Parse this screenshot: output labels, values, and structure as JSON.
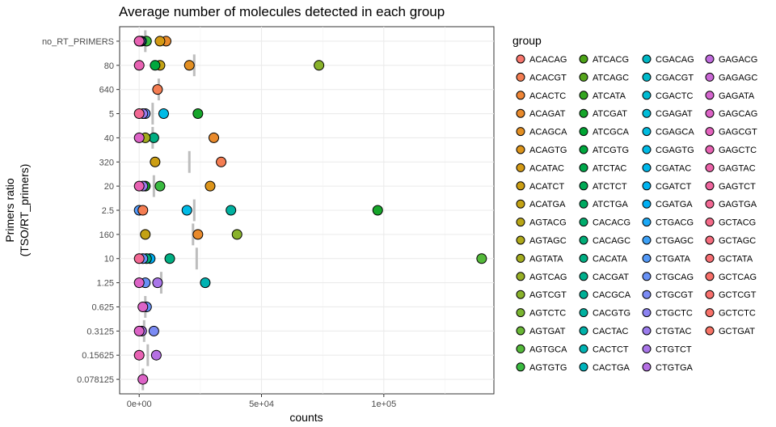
{
  "chart_data": {
    "type": "scatter",
    "title": "Average number of molecules detected in each group",
    "xlabel": "counts",
    "ylabel": [
      "Primers ratio",
      "(TSO/RT_primers)"
    ],
    "xlim": [
      -8000,
      145000
    ],
    "x_ticks": [
      0,
      50000,
      100000
    ],
    "x_tick_labels": [
      "0e+00",
      "5e+04",
      "1e+05"
    ],
    "categories": [
      "no_RT_PRIMERS",
      "80",
      "640",
      "5",
      "40",
      "320",
      "20",
      "2.5",
      "160",
      "10",
      "1.25",
      "0.625",
      "0.3125",
      "0.15625",
      "0.078125"
    ],
    "grid": true,
    "legend_title": "group",
    "legend_position": "right",
    "legend": [
      {
        "label": "ACACAG",
        "color": "#F8766D"
      },
      {
        "label": "ACACGT",
        "color": "#F47D52"
      },
      {
        "label": "ACACTC",
        "color": "#EF8536"
      },
      {
        "label": "ACAGAT",
        "color": "#E98A2C"
      },
      {
        "label": "ACAGCA",
        "color": "#E38F22"
      },
      {
        "label": "ACAGTG",
        "color": "#DC941A"
      },
      {
        "label": "ACATAC",
        "color": "#D49A15"
      },
      {
        "label": "ACATCT",
        "color": "#CC9E13"
      },
      {
        "label": "ACATGA",
        "color": "#C3A214"
      },
      {
        "label": "AGTACG",
        "color": "#B9A616"
      },
      {
        "label": "AGTAGC",
        "color": "#AFA91A"
      },
      {
        "label": "AGTATA",
        "color": "#A3AC1F"
      },
      {
        "label": "AGTCAG",
        "color": "#97AF25"
      },
      {
        "label": "AGTCGT",
        "color": "#89B22B"
      },
      {
        "label": "AGTCTC",
        "color": "#7AB530"
      },
      {
        "label": "AGTGAT",
        "color": "#69B735"
      },
      {
        "label": "AGTGCA",
        "color": "#54B93A"
      },
      {
        "label": "AGTGTG",
        "color": "#39BA40"
      },
      {
        "label": "ATCACG",
        "color": "#4CA318"
      },
      {
        "label": "ATCAGC",
        "color": "#56A51D"
      },
      {
        "label": "ATCATA",
        "color": "#34A521"
      },
      {
        "label": "ATCGAT",
        "color": "#16A52A"
      },
      {
        "label": "ATCGCA",
        "color": "#00A533"
      },
      {
        "label": "ATCGTG",
        "color": "#00A83E"
      },
      {
        "label": "ATCTAC",
        "color": "#00A84B"
      },
      {
        "label": "ATCTCT",
        "color": "#00A955"
      },
      {
        "label": "ATCTGA",
        "color": "#00AA61"
      },
      {
        "label": "CACACG",
        "color": "#00AC6C"
      },
      {
        "label": "CACAGC",
        "color": "#00AD77"
      },
      {
        "label": "CACATA",
        "color": "#00AE82"
      },
      {
        "label": "CACGAT",
        "color": "#00AF8C"
      },
      {
        "label": "CACGCA",
        "color": "#00B096"
      },
      {
        "label": "CACGTG",
        "color": "#00B1A0"
      },
      {
        "label": "CACTAC",
        "color": "#00B2AA"
      },
      {
        "label": "CACTCT",
        "color": "#00B3B3"
      },
      {
        "label": "CACTGA",
        "color": "#00B4BC"
      },
      {
        "label": "CGACAG",
        "color": "#00B7C4"
      },
      {
        "label": "CGACGT",
        "color": "#00BACB"
      },
      {
        "label": "CGACTC",
        "color": "#00BBD2"
      },
      {
        "label": "CGAGAT",
        "color": "#00BCD9"
      },
      {
        "label": "CGAGCA",
        "color": "#00BCE0"
      },
      {
        "label": "CGAGTG",
        "color": "#00BBE6"
      },
      {
        "label": "CGATAC",
        "color": "#00B8EB"
      },
      {
        "label": "CGATCT",
        "color": "#00B4F0"
      },
      {
        "label": "CGATGA",
        "color": "#00AFF4"
      },
      {
        "label": "CTGACG",
        "color": "#1BA8F6"
      },
      {
        "label": "CTGAGC",
        "color": "#3DA1F7"
      },
      {
        "label": "CTGATA",
        "color": "#5499F7"
      },
      {
        "label": "CTGCAG",
        "color": "#6892F6"
      },
      {
        "label": "CTGCGT",
        "color": "#7B8BF4"
      },
      {
        "label": "CTGCTC",
        "color": "#8C83F1"
      },
      {
        "label": "CTGTAC",
        "color": "#9B7CED"
      },
      {
        "label": "CTGTCT",
        "color": "#A976E9"
      },
      {
        "label": "CTGTGA",
        "color": "#B570E3"
      },
      {
        "label": "GAGACG",
        "color": "#C06BDD"
      },
      {
        "label": "GAGAGC",
        "color": "#CA68D6"
      },
      {
        "label": "GAGATA",
        "color": "#D465CE"
      },
      {
        "label": "GAGCAG",
        "color": "#DC63C6"
      },
      {
        "label": "GAGCGT",
        "color": "#E362BD"
      },
      {
        "label": "GAGCTC",
        "color": "#E862B3"
      },
      {
        "label": "GAGTAC",
        "color": "#EC63A9"
      },
      {
        "label": "GAGTCT",
        "color": "#EF659E"
      },
      {
        "label": "GAGTGA",
        "color": "#F26893"
      },
      {
        "label": "GCTACG",
        "color": "#F46A88"
      },
      {
        "label": "GCTAGC",
        "color": "#F66C7D"
      },
      {
        "label": "GCTATA",
        "color": "#F76E73"
      },
      {
        "label": "GCTCAG",
        "color": "#F86F69"
      },
      {
        "label": "GCTCGT",
        "color": "#F9706D"
      },
      {
        "label": "GCTCTC",
        "color": "#F87169"
      },
      {
        "label": "GCTGAT",
        "color": "#F77365"
      }
    ],
    "means": [
      {
        "category": "no_RT_PRIMERS",
        "x": 2500
      },
      {
        "category": "80",
        "x": 22500
      },
      {
        "category": "640",
        "x": 8000
      },
      {
        "category": "5",
        "x": 5500
      },
      {
        "category": "40",
        "x": 5500
      },
      {
        "category": "320",
        "x": 20500
      },
      {
        "category": "20",
        "x": 6000
      },
      {
        "category": "2.5",
        "x": 22500
      },
      {
        "category": "160",
        "x": 22000
      },
      {
        "category": "10",
        "x": 23500
      },
      {
        "category": "1.25",
        "x": 9000
      },
      {
        "category": "0.625",
        "x": 2500
      },
      {
        "category": "0.3125",
        "x": 2000
      },
      {
        "category": "0.15625",
        "x": 3500
      },
      {
        "category": "0.078125",
        "x": 1500
      }
    ],
    "points": [
      {
        "category": "no_RT_PRIMERS",
        "x": 0,
        "color": "#F8766D"
      },
      {
        "category": "no_RT_PRIMERS",
        "x": 11000,
        "color": "#E98A2C"
      },
      {
        "category": "no_RT_PRIMERS",
        "x": 8500,
        "color": "#D49A15"
      },
      {
        "category": "no_RT_PRIMERS",
        "x": 3000,
        "color": "#39BA40"
      },
      {
        "category": "no_RT_PRIMERS",
        "x": 1000,
        "color": "#00BCD9"
      },
      {
        "category": "no_RT_PRIMERS",
        "x": 500,
        "color": "#9B7CED"
      },
      {
        "category": "no_RT_PRIMERS",
        "x": 0,
        "color": "#E862B3"
      },
      {
        "category": "80",
        "x": 73500,
        "color": "#89B22B"
      },
      {
        "category": "80",
        "x": 20500,
        "color": "#E38F22"
      },
      {
        "category": "80",
        "x": 8500,
        "color": "#C3A214"
      },
      {
        "category": "80",
        "x": 6500,
        "color": "#00A83E"
      },
      {
        "category": "80",
        "x": 0,
        "color": "#E862B3"
      },
      {
        "category": "640",
        "x": 7500,
        "color": "#F47D52"
      },
      {
        "category": "5",
        "x": 24000,
        "color": "#16A52A"
      },
      {
        "category": "5",
        "x": 10000,
        "color": "#00BBE6"
      },
      {
        "category": "5",
        "x": 2500,
        "color": "#6892F6"
      },
      {
        "category": "5",
        "x": 1500,
        "color": "#9B7CED"
      },
      {
        "category": "5",
        "x": 0,
        "color": "#F26893"
      },
      {
        "category": "40",
        "x": 30500,
        "color": "#E98A2C"
      },
      {
        "category": "40",
        "x": 6000,
        "color": "#00AE82"
      },
      {
        "category": "40",
        "x": 2500,
        "color": "#A3AC1F"
      },
      {
        "category": "40",
        "x": 0,
        "color": "#DC63C6"
      },
      {
        "category": "320",
        "x": 33500,
        "color": "#F47D52"
      },
      {
        "category": "320",
        "x": 6500,
        "color": "#CC9E13"
      },
      {
        "category": "20",
        "x": 29000,
        "color": "#DC941A"
      },
      {
        "category": "20",
        "x": 8500,
        "color": "#39BA40"
      },
      {
        "category": "20",
        "x": 2500,
        "color": "#16A52A"
      },
      {
        "category": "20",
        "x": 1500,
        "color": "#9B7CED"
      },
      {
        "category": "20",
        "x": 0,
        "color": "#E862B3"
      },
      {
        "category": "2.5",
        "x": 97500,
        "color": "#16A52A"
      },
      {
        "category": "2.5",
        "x": 37500,
        "color": "#00B1A0"
      },
      {
        "category": "2.5",
        "x": 19500,
        "color": "#00BBE6"
      },
      {
        "category": "2.5",
        "x": 0,
        "color": "#5499F7"
      },
      {
        "category": "2.5",
        "x": 1500,
        "color": "#F47D52"
      },
      {
        "category": "160",
        "x": 40000,
        "color": "#89B22B"
      },
      {
        "category": "160",
        "x": 24000,
        "color": "#E98A2C"
      },
      {
        "category": "160",
        "x": 2500,
        "color": "#C3A214"
      },
      {
        "category": "10",
        "x": 140000,
        "color": "#54B93A"
      },
      {
        "category": "10",
        "x": 12500,
        "color": "#00AE82"
      },
      {
        "category": "10",
        "x": 4500,
        "color": "#00AFF4"
      },
      {
        "category": "10",
        "x": 3000,
        "color": "#00AD77"
      },
      {
        "category": "10",
        "x": 1500,
        "color": "#6892F6"
      },
      {
        "category": "10",
        "x": 0,
        "color": "#F26893"
      },
      {
        "category": "1.25",
        "x": 27000,
        "color": "#00B3B3"
      },
      {
        "category": "1.25",
        "x": 7500,
        "color": "#A976E9"
      },
      {
        "category": "1.25",
        "x": 2500,
        "color": "#6892F6"
      },
      {
        "category": "1.25",
        "x": 0,
        "color": "#DC63C6"
      },
      {
        "category": "0.625",
        "x": 3000,
        "color": "#6892F6"
      },
      {
        "category": "0.625",
        "x": 1500,
        "color": "#DC63C6"
      },
      {
        "category": "0.3125",
        "x": 6000,
        "color": "#7B8BF4"
      },
      {
        "category": "0.3125",
        "x": 1000,
        "color": "#A976E9"
      },
      {
        "category": "0.3125",
        "x": 0,
        "color": "#DC63C6"
      },
      {
        "category": "0.15625",
        "x": 7000,
        "color": "#B570E3"
      },
      {
        "category": "0.15625",
        "x": 0,
        "color": "#E862B3"
      },
      {
        "category": "0.078125",
        "x": 1500,
        "color": "#DC63C6"
      }
    ]
  }
}
